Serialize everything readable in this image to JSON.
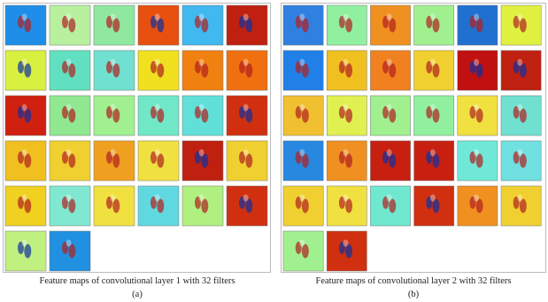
{
  "panels": [
    {
      "caption": "Feature maps of convolutional layer 1 with 32 filters",
      "label": "(a)"
    },
    {
      "caption": "Feature maps of convolutional layer 2 with 32 filters",
      "label": "(b)"
    }
  ]
}
